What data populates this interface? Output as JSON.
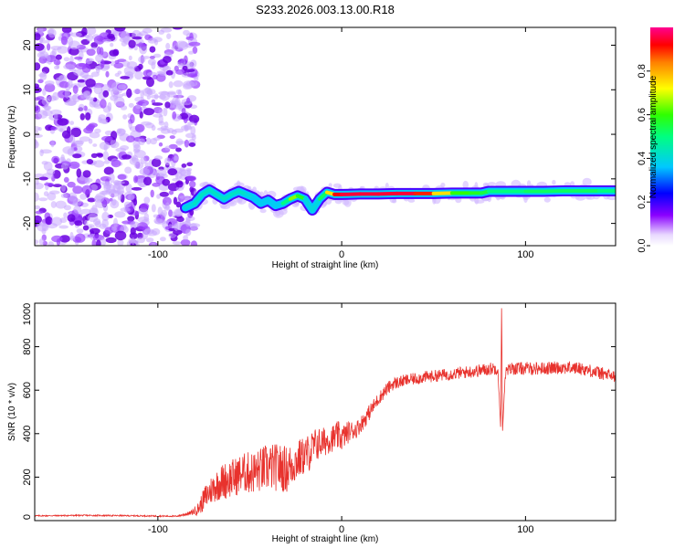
{
  "page_title": "S233.2026.003.13.00.R18",
  "chart_data": [
    {
      "type": "heatmap",
      "title": "S233.2026.003.13.00.R18",
      "xlabel": "Height of straight line (km)",
      "ylabel": "Frequency (Hz)",
      "xlim": [
        -167,
        149
      ],
      "ylim": [
        -25,
        24
      ],
      "xticks": [
        -100,
        0,
        100
      ],
      "xtick_labels": [
        "-100",
        "0",
        "100"
      ],
      "yticks": [
        -20,
        -10,
        0,
        10,
        20
      ],
      "ytick_labels": [
        "-20",
        "-10",
        "0",
        "10",
        "20"
      ],
      "colorbar": {
        "label": "Normalized spectral amplitude",
        "range": [
          0,
          1
        ],
        "ticks": [
          0.0,
          0.2,
          0.4,
          0.6,
          0.8
        ],
        "tick_labels": [
          "0.0",
          "0.2",
          "0.4",
          "0.6",
          "0.8"
        ]
      },
      "noise_region_x": [
        -167,
        -83
      ],
      "ridge": {
        "x": [
          -85,
          -80,
          -76,
          -72,
          -68,
          -64,
          -60,
          -56,
          -52,
          -48,
          -44,
          -40,
          -36,
          -32,
          -28,
          -24,
          -20,
          -16,
          -12,
          -8,
          -4,
          0,
          10,
          20,
          30,
          40,
          50,
          60,
          70,
          76,
          80,
          90,
          100,
          110,
          120,
          130,
          140,
          149
        ],
        "y": [
          -16.5,
          -15.5,
          -13.5,
          -12.5,
          -13.5,
          -14.5,
          -13.5,
          -12.8,
          -13.5,
          -14.2,
          -15.5,
          -14.8,
          -16,
          -15.5,
          -14.5,
          -13.8,
          -14.5,
          -17,
          -14.5,
          -13,
          -13.5,
          -13.5,
          -13.4,
          -13.4,
          -13.3,
          -13.3,
          -13.3,
          -13.2,
          -13.2,
          -13.2,
          -12.8,
          -12.8,
          -12.8,
          -12.8,
          -12.7,
          -12.7,
          -12.7,
          -12.7
        ],
        "amp": [
          0.35,
          0.45,
          0.4,
          0.45,
          0.4,
          0.45,
          0.4,
          0.45,
          0.4,
          0.4,
          0.35,
          0.4,
          0.35,
          0.4,
          0.6,
          0.7,
          0.45,
          0.35,
          0.45,
          0.6,
          0.9,
          0.95,
          0.95,
          0.95,
          0.95,
          0.95,
          0.85,
          0.65,
          0.55,
          0.6,
          0.5,
          0.5,
          0.5,
          0.55,
          0.5,
          0.55,
          0.5,
          0.5
        ]
      }
    },
    {
      "type": "line",
      "xlabel": "Height of straight line (km)",
      "ylabel": "SNR (10 * v/v)",
      "xlim": [
        -167,
        149
      ],
      "ylim": [
        0,
        1000
      ],
      "xticks": [
        -100,
        0,
        100
      ],
      "xtick_labels": [
        "-100",
        "0",
        "100"
      ],
      "yticks": [
        0,
        200,
        400,
        600,
        800,
        1000
      ],
      "ytick_labels": [
        "0",
        "200",
        "400",
        "600",
        "800",
        "1000"
      ],
      "color": "#e8322d",
      "series": [
        {
          "name": "SNR",
          "x": [
            -167,
            -140,
            -110,
            -90,
            -82,
            -78,
            -74,
            -70,
            -66,
            -62,
            -58,
            -54,
            -50,
            -46,
            -42,
            -38,
            -34,
            -30,
            -26,
            -22,
            -18,
            -14,
            -10,
            -6,
            -2,
            0,
            4,
            8,
            12,
            16,
            20,
            24,
            28,
            35,
            45,
            55,
            65,
            75,
            82,
            85,
            86.5,
            87,
            87.5,
            89,
            92,
            100,
            110,
            120,
            130,
            140,
            149
          ],
          "y": [
            22,
            24,
            22,
            20,
            35,
            55,
            110,
            150,
            175,
            190,
            200,
            220,
            220,
            225,
            240,
            245,
            245,
            235,
            265,
            290,
            310,
            350,
            360,
            375,
            390,
            380,
            410,
            420,
            460,
            510,
            560,
            600,
            630,
            645,
            660,
            670,
            680,
            690,
            700,
            700,
            420,
            1000,
            410,
            680,
            700,
            700,
            700,
            705,
            700,
            680,
            660
          ]
        }
      ],
      "noise_amplitude": [
        3,
        3,
        3,
        3,
        10,
        30,
        60,
        70,
        80,
        90,
        90,
        90,
        100,
        100,
        110,
        110,
        110,
        110,
        100,
        90,
        90,
        80,
        70,
        60,
        70,
        60,
        50,
        40,
        40,
        35,
        30,
        30,
        30,
        28,
        28,
        28,
        28,
        30,
        30,
        30,
        0,
        0,
        0,
        30,
        30,
        30,
        30,
        30,
        30,
        30,
        30
      ]
    }
  ]
}
